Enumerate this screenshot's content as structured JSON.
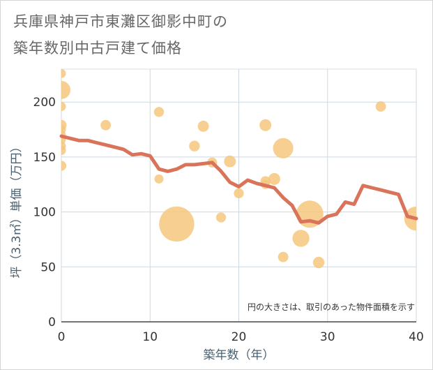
{
  "title_line1": "兵庫県神戸市東灘区御影中町の",
  "title_line2": "築年数別中古戸建て価格",
  "chart_data": {
    "type": "scatter",
    "xlabel": "築年数（年）",
    "ylabel": "坪（3.3㎡）単価（万円）",
    "xlim": [
      0,
      40
    ],
    "ylim": [
      0,
      230
    ],
    "xticks": [
      0,
      10,
      20,
      30,
      40
    ],
    "yticks": [
      0,
      50,
      100,
      150,
      200
    ],
    "grid": true,
    "note": "円の大きさは、取引のあった物件面積を示す",
    "bubble_color": "#f5c77e",
    "line_color": "#d9735a",
    "bubbles": [
      {
        "x": 0,
        "y": 226,
        "s": 1
      },
      {
        "x": 0,
        "y": 211,
        "s": 4
      },
      {
        "x": 0,
        "y": 196,
        "s": 1
      },
      {
        "x": 0,
        "y": 179,
        "s": 1.3
      },
      {
        "x": 0,
        "y": 175,
        "s": 1
      },
      {
        "x": 0,
        "y": 170,
        "s": 1
      },
      {
        "x": 0,
        "y": 166,
        "s": 1
      },
      {
        "x": 0,
        "y": 160,
        "s": 1
      },
      {
        "x": 0,
        "y": 156,
        "s": 1
      },
      {
        "x": 0,
        "y": 142,
        "s": 1.2
      },
      {
        "x": 5,
        "y": 179,
        "s": 1.3
      },
      {
        "x": 11,
        "y": 191,
        "s": 1.2
      },
      {
        "x": 11,
        "y": 130,
        "s": 1
      },
      {
        "x": 13,
        "y": 89,
        "s": 15
      },
      {
        "x": 15,
        "y": 160,
        "s": 1.4
      },
      {
        "x": 16,
        "y": 178,
        "s": 1.5
      },
      {
        "x": 17,
        "y": 145,
        "s": 1.2
      },
      {
        "x": 18,
        "y": 95,
        "s": 1.2
      },
      {
        "x": 19,
        "y": 146,
        "s": 1.7
      },
      {
        "x": 20,
        "y": 117,
        "s": 1.2
      },
      {
        "x": 23,
        "y": 179,
        "s": 1.7
      },
      {
        "x": 23,
        "y": 128,
        "s": 1.2
      },
      {
        "x": 23,
        "y": 125,
        "s": 1
      },
      {
        "x": 24,
        "y": 130,
        "s": 1.7
      },
      {
        "x": 25,
        "y": 158,
        "s": 5
      },
      {
        "x": 25,
        "y": 59,
        "s": 1.3
      },
      {
        "x": 27,
        "y": 76,
        "s": 3.5
      },
      {
        "x": 28,
        "y": 98,
        "s": 9
      },
      {
        "x": 29,
        "y": 54,
        "s": 1.6
      },
      {
        "x": 36,
        "y": 196,
        "s": 1.3
      },
      {
        "x": 40,
        "y": 94,
        "s": 7
      }
    ],
    "series": [
      {
        "x": [
          0,
          1,
          2,
          3,
          4,
          5,
          6,
          7,
          8,
          9,
          10,
          11,
          12,
          13,
          14,
          15,
          16,
          17,
          18,
          19,
          20,
          21,
          22,
          23,
          24,
          25,
          26,
          27,
          28,
          29,
          30,
          31,
          32,
          33,
          34,
          35,
          36,
          37,
          38,
          39,
          40
        ],
        "values": [
          169,
          167,
          165,
          165,
          163,
          161,
          159,
          157,
          152,
          153,
          151,
          139,
          137,
          139,
          143,
          143,
          144,
          145,
          137,
          127,
          123,
          129,
          126,
          124,
          122,
          113,
          106,
          91,
          92,
          90,
          96,
          98,
          109,
          107,
          124,
          122,
          120,
          118,
          116,
          96,
          94
        ]
      }
    ]
  }
}
